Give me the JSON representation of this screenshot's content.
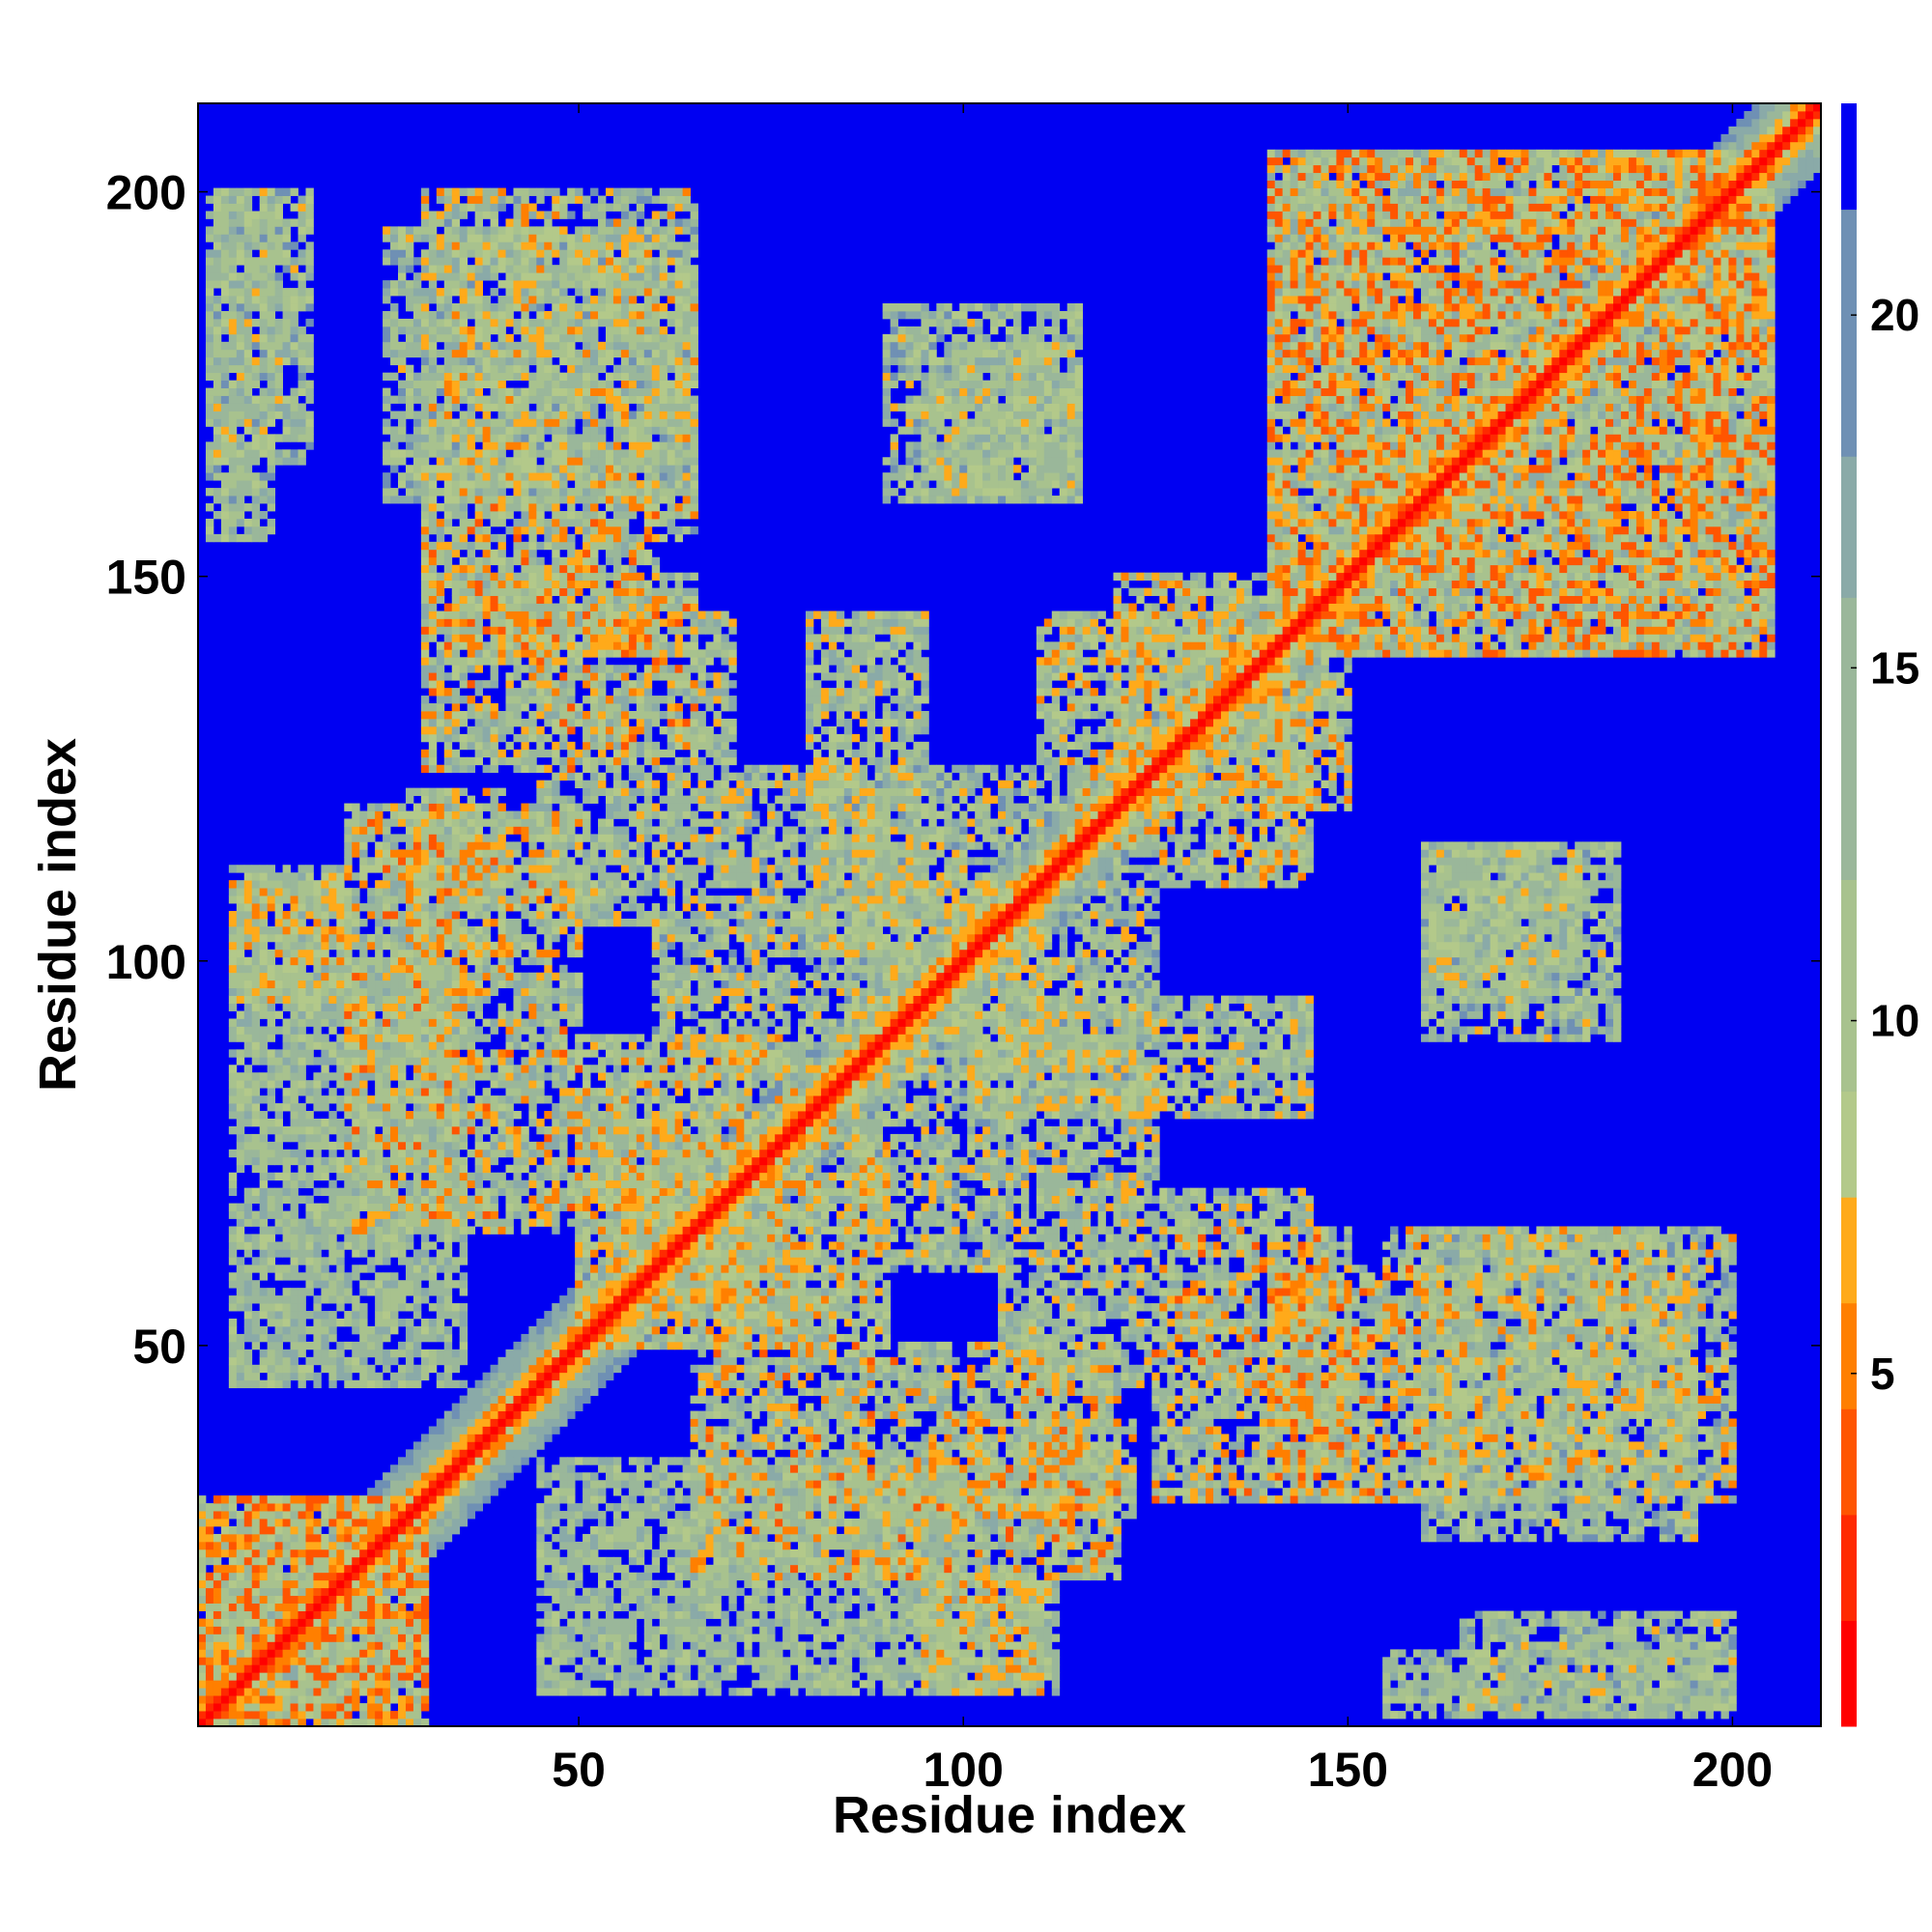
{
  "chart_data": {
    "type": "heatmap",
    "title": "",
    "xlabel": "Residue index",
    "ylabel": "Residue index",
    "xlim": [
      1,
      211
    ],
    "ylim": [
      1,
      211
    ],
    "x_ticks": [
      50,
      100,
      150,
      200
    ],
    "y_ticks": [
      50,
      100,
      150,
      200
    ],
    "x_tick_labels": [
      "50",
      "100",
      "150",
      "200"
    ],
    "y_tick_labels": [
      "50",
      "100",
      "150",
      "200"
    ],
    "colorbar": {
      "ticks": [
        5,
        10,
        15,
        20
      ],
      "tick_labels": [
        "5",
        "10",
        "15",
        "20"
      ],
      "range": [
        0,
        23
      ],
      "levels": [
        {
          "min": 0,
          "max": 1.5,
          "color": "#ff0000"
        },
        {
          "min": 1.5,
          "max": 3,
          "color": "#ff2a00"
        },
        {
          "min": 3,
          "max": 4.5,
          "color": "#ff5500"
        },
        {
          "min": 4.5,
          "max": 6,
          "color": "#ff7f00"
        },
        {
          "min": 6,
          "max": 7.5,
          "color": "#ffaa1a"
        },
        {
          "min": 7.5,
          "max": 9,
          "color": "#b3c98a"
        },
        {
          "min": 9,
          "max": 12,
          "color": "#a8c28e"
        },
        {
          "min": 12,
          "max": 16,
          "color": "#9ab79a"
        },
        {
          "min": 16,
          "max": 18,
          "color": "#8aaaa8"
        },
        {
          "min": 18,
          "max": 21.5,
          "color": "#6f90b4"
        },
        {
          "min": 21.5,
          "max": 23,
          "color": "#0000f2"
        }
      ],
      "background_color": "#0000f2"
    },
    "description_of_values": "Symmetric residue-residue distance map; diagonal ~0 (red), contact patches ~6-20 (orange/sage), far pairs >21 (blue).",
    "contact_patches": [
      {
        "x": [
          1,
          30
        ],
        "y": [
          1,
          30
        ],
        "min": 3,
        "max": 15
      },
      {
        "x": [
          5,
          35
        ],
        "y": [
          45,
          100
        ],
        "min": 8,
        "max": 18
      },
      {
        "x": [
          28,
          40
        ],
        "y": [
          100,
          122
        ],
        "min": 5,
        "max": 16
      },
      {
        "x": [
          5,
          20
        ],
        "y": [
          95,
          112
        ],
        "min": 6,
        "max": 17
      },
      {
        "x": [
          2,
          10
        ],
        "y": [
          155,
          200
        ],
        "min": 8,
        "max": 19
      },
      {
        "x": [
          25,
          65
        ],
        "y": [
          160,
          195
        ],
        "min": 7,
        "max": 19
      },
      {
        "x": [
          30,
          65
        ],
        "y": [
          125,
          150
        ],
        "min": 4,
        "max": 18
      },
      {
        "x": [
          45,
          70
        ],
        "y": [
          105,
          145
        ],
        "min": 6,
        "max": 18
      },
      {
        "x": [
          50,
          90
        ],
        "y": [
          50,
          80
        ],
        "min": 5,
        "max": 18
      },
      {
        "x": [
          60,
          110
        ],
        "y": [
          85,
          125
        ],
        "min": 6,
        "max": 19
      },
      {
        "x": [
          90,
          115
        ],
        "y": [
          160,
          185
        ],
        "min": 7,
        "max": 19
      },
      {
        "x": [
          105,
          145
        ],
        "y": [
          80,
          95
        ],
        "min": 6,
        "max": 18
      },
      {
        "x": [
          110,
          150
        ],
        "y": [
          120,
          145
        ],
        "min": 5,
        "max": 17
      },
      {
        "x": [
          140,
          205
        ],
        "y": [
          140,
          205
        ],
        "min": 3,
        "max": 18
      },
      {
        "x": [
          160,
          180
        ],
        "y": [
          95,
          115
        ],
        "min": 7,
        "max": 19
      },
      {
        "x": [
          65,
          120
        ],
        "y": [
          20,
          50
        ],
        "min": 4,
        "max": 18
      },
      {
        "x": [
          140,
          160
        ],
        "y": [
          30,
          60
        ],
        "min": 4,
        "max": 17
      },
      {
        "x": [
          155,
          200
        ],
        "y": [
          30,
          65
        ],
        "min": 5,
        "max": 19
      },
      {
        "x": [
          165,
          200
        ],
        "y": [
          3,
          15
        ],
        "min": 7,
        "max": 19
      },
      {
        "x": [
          95,
          110
        ],
        "y": [
          5,
          20
        ],
        "min": 5,
        "max": 17
      }
    ]
  }
}
